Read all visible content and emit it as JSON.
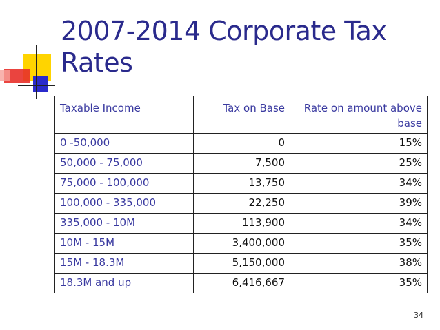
{
  "slide": {
    "title": "2007-2014 Corporate Tax Rates",
    "page_number": "34"
  },
  "table": {
    "headers": [
      "Taxable Income",
      "Tax on Base",
      "Rate on amount above base"
    ],
    "rows": [
      [
        "0 -50,000",
        "0",
        "15%"
      ],
      [
        "50,000 - 75,000",
        "7,500",
        "25%"
      ],
      [
        "75,000 - 100,000",
        "13,750",
        "34%"
      ],
      [
        "100,000 - 335,000",
        "22,250",
        "39%"
      ],
      [
        "335,000 - 10M",
        "113,900",
        "34%"
      ],
      [
        "10M - 15M",
        "3,400,000",
        "35%"
      ],
      [
        "15M - 18.3M",
        "5,150,000",
        "38%"
      ],
      [
        "18.3M and up",
        "6,416,667",
        "35%"
      ]
    ]
  },
  "colors": {
    "title": "#2a2a8c",
    "deco_yellow": "#ffd400",
    "deco_red": "#e8302a",
    "deco_blue": "#2a2acc"
  }
}
